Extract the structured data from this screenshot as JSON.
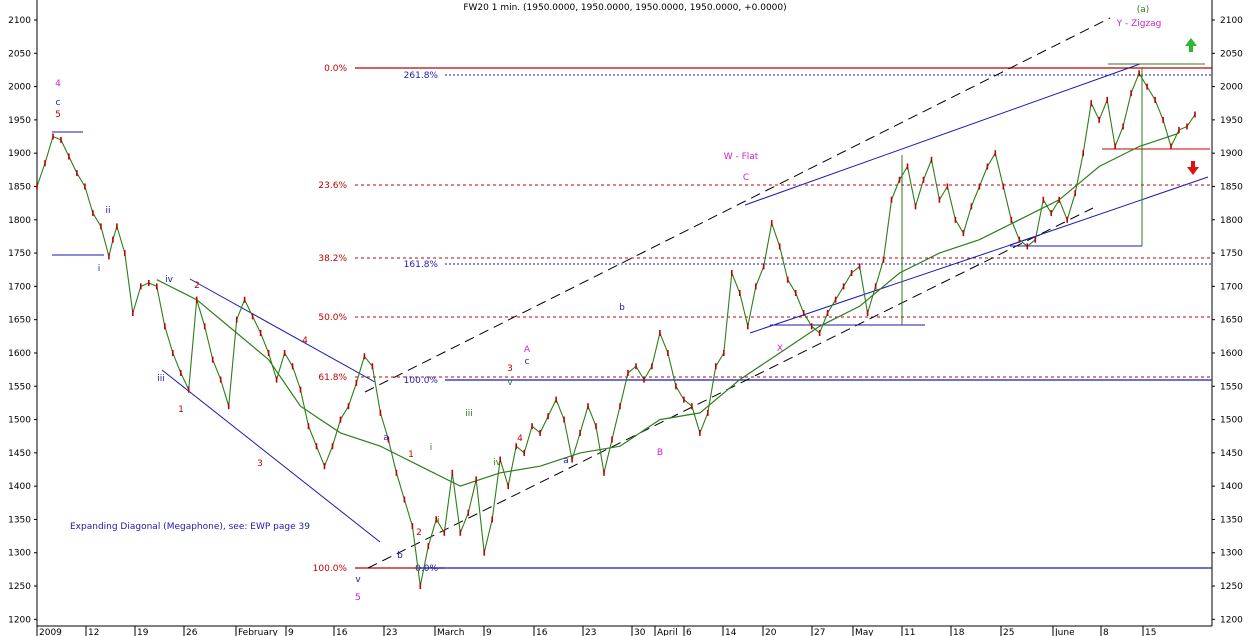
{
  "chart_data": {
    "type": "line",
    "title": "FW20 1 min. (1950.0000, 1950.0000, 1950.0000, 1950.0000, +0.0000)",
    "xlabel": "",
    "ylabel": "",
    "ylim": [
      1190,
      2130
    ],
    "y_ticks": [
      1200,
      1250,
      1300,
      1350,
      1400,
      1450,
      1500,
      1550,
      1600,
      1650,
      1700,
      1750,
      1800,
      1850,
      1900,
      1950,
      2000,
      2050,
      2100
    ],
    "x_tick_labels": [
      "2009",
      "12",
      "19",
      "26",
      "February",
      "9",
      "16",
      "23",
      "March",
      "9",
      "16",
      "23",
      "30",
      "April",
      "6",
      "14",
      "20",
      "27",
      "May",
      "11",
      "18",
      "25",
      "June",
      "8",
      "15"
    ],
    "grid": false,
    "series": [
      {
        "name": "",
        "color": "#2e7d1a",
        "points": [
          [
            0,
            1850
          ],
          [
            2,
            1885
          ],
          [
            4,
            1925
          ],
          [
            6,
            1920
          ],
          [
            8,
            1895
          ],
          [
            10,
            1870
          ],
          [
            12,
            1850
          ],
          [
            14,
            1810
          ],
          [
            16,
            1790
          ],
          [
            18,
            1745
          ],
          [
            19,
            1770
          ],
          [
            20,
            1790
          ],
          [
            22,
            1750
          ],
          [
            24,
            1660
          ],
          [
            26,
            1700
          ],
          [
            28,
            1705
          ],
          [
            30,
            1700
          ],
          [
            32,
            1640
          ],
          [
            34,
            1600
          ],
          [
            36,
            1570
          ],
          [
            38,
            1545
          ],
          [
            40,
            1680
          ],
          [
            42,
            1640
          ],
          [
            44,
            1590
          ],
          [
            46,
            1560
          ],
          [
            48,
            1520
          ],
          [
            50,
            1650
          ],
          [
            52,
            1680
          ],
          [
            54,
            1655
          ],
          [
            56,
            1630
          ],
          [
            58,
            1600
          ],
          [
            60,
            1560
          ],
          [
            62,
            1600
          ],
          [
            64,
            1580
          ],
          [
            66,
            1545
          ],
          [
            68,
            1490
          ],
          [
            70,
            1460
          ],
          [
            72,
            1430
          ],
          [
            74,
            1460
          ],
          [
            76,
            1500
          ],
          [
            78,
            1520
          ],
          [
            80,
            1555
          ],
          [
            82,
            1595
          ],
          [
            84,
            1580
          ],
          [
            86,
            1510
          ],
          [
            88,
            1470
          ],
          [
            90,
            1420
          ],
          [
            92,
            1380
          ],
          [
            94,
            1340
          ],
          [
            96,
            1250
          ],
          [
            98,
            1310
          ],
          [
            100,
            1350
          ],
          [
            102,
            1330
          ],
          [
            104,
            1420
          ],
          [
            106,
            1330
          ],
          [
            108,
            1360
          ],
          [
            110,
            1410
          ],
          [
            112,
            1300
          ],
          [
            114,
            1350
          ],
          [
            116,
            1440
          ],
          [
            118,
            1400
          ],
          [
            120,
            1460
          ],
          [
            122,
            1450
          ],
          [
            124,
            1490
          ],
          [
            126,
            1480
          ],
          [
            128,
            1505
          ],
          [
            130,
            1530
          ],
          [
            132,
            1500
          ],
          [
            134,
            1440
          ],
          [
            136,
            1480
          ],
          [
            138,
            1520
          ],
          [
            140,
            1490
          ],
          [
            142,
            1420
          ],
          [
            144,
            1470
          ],
          [
            146,
            1520
          ],
          [
            148,
            1570
          ],
          [
            150,
            1580
          ],
          [
            152,
            1560
          ],
          [
            154,
            1580
          ],
          [
            156,
            1630
          ],
          [
            158,
            1600
          ],
          [
            160,
            1550
          ],
          [
            162,
            1530
          ],
          [
            164,
            1520
          ],
          [
            166,
            1480
          ],
          [
            168,
            1510
          ],
          [
            170,
            1580
          ],
          [
            172,
            1600
          ],
          [
            174,
            1720
          ],
          [
            176,
            1690
          ],
          [
            178,
            1640
          ],
          [
            180,
            1700
          ],
          [
            182,
            1730
          ],
          [
            184,
            1795
          ],
          [
            186,
            1760
          ],
          [
            188,
            1710
          ],
          [
            190,
            1690
          ],
          [
            192,
            1660
          ],
          [
            194,
            1640
          ],
          [
            196,
            1630
          ],
          [
            198,
            1660
          ],
          [
            200,
            1680
          ],
          [
            202,
            1700
          ],
          [
            204,
            1720
          ],
          [
            206,
            1730
          ],
          [
            208,
            1660
          ],
          [
            210,
            1700
          ],
          [
            212,
            1740
          ],
          [
            214,
            1830
          ],
          [
            216,
            1860
          ],
          [
            218,
            1880
          ],
          [
            220,
            1820
          ],
          [
            222,
            1860
          ],
          [
            224,
            1890
          ],
          [
            226,
            1830
          ],
          [
            228,
            1850
          ],
          [
            230,
            1800
          ],
          [
            232,
            1780
          ],
          [
            234,
            1820
          ],
          [
            236,
            1850
          ],
          [
            238,
            1880
          ],
          [
            240,
            1900
          ],
          [
            242,
            1850
          ],
          [
            244,
            1800
          ],
          [
            246,
            1770
          ],
          [
            248,
            1760
          ],
          [
            250,
            1770
          ],
          [
            252,
            1830
          ],
          [
            254,
            1810
          ],
          [
            256,
            1830
          ],
          [
            258,
            1800
          ],
          [
            260,
            1840
          ],
          [
            262,
            1900
          ],
          [
            264,
            1975
          ],
          [
            266,
            1950
          ],
          [
            268,
            1980
          ],
          [
            270,
            1910
          ],
          [
            272,
            1940
          ],
          [
            274,
            1990
          ],
          [
            276,
            2020
          ],
          [
            278,
            2000
          ],
          [
            280,
            1980
          ],
          [
            282,
            1950
          ],
          [
            284,
            1910
          ],
          [
            286,
            1935
          ],
          [
            288,
            1940
          ],
          [
            290,
            1958
          ]
        ]
      },
      {
        "name": "",
        "color": "#2e7d1a",
        "points": [
          [
            30,
            1710
          ],
          [
            40,
            1680
          ],
          [
            50,
            1630
          ],
          [
            58,
            1590
          ],
          [
            66,
            1520
          ],
          [
            76,
            1480
          ],
          [
            86,
            1460
          ],
          [
            96,
            1430
          ],
          [
            106,
            1400
          ],
          [
            116,
            1420
          ],
          [
            126,
            1430
          ],
          [
            136,
            1450
          ],
          [
            146,
            1460
          ],
          [
            156,
            1500
          ],
          [
            166,
            1510
          ],
          [
            176,
            1560
          ],
          [
            186,
            1600
          ],
          [
            196,
            1640
          ],
          [
            206,
            1670
          ],
          [
            216,
            1720
          ],
          [
            226,
            1750
          ],
          [
            236,
            1770
          ],
          [
            246,
            1800
          ],
          [
            256,
            1830
          ],
          [
            266,
            1880
          ],
          [
            276,
            1910
          ],
          [
            286,
            1930
          ]
        ]
      }
    ],
    "annotations": {
      "fib_levels_red": [
        "0.0%",
        "23.6%",
        "38.2%",
        "50.0%",
        "61.8%",
        "100.0%"
      ],
      "fib_levels_blue": [
        "261.8%",
        "161.8%",
        "100.0%",
        "0.0%"
      ],
      "wave_labels": [
        "4",
        "c",
        "5",
        "ii",
        "i",
        "iv",
        "iii",
        "1",
        "2",
        "3",
        "4",
        "5",
        "v",
        "b",
        "a",
        "i",
        "ii",
        "iii",
        "iv",
        "v",
        "A",
        "c",
        "3",
        "4",
        "a",
        "b",
        "2",
        "1",
        "B",
        "W - Flat",
        "C",
        "X",
        "Y - Zigzag",
        "(a)"
      ],
      "note": "Expanding Diagonal (Megaphone), see: EWP page 39"
    }
  }
}
